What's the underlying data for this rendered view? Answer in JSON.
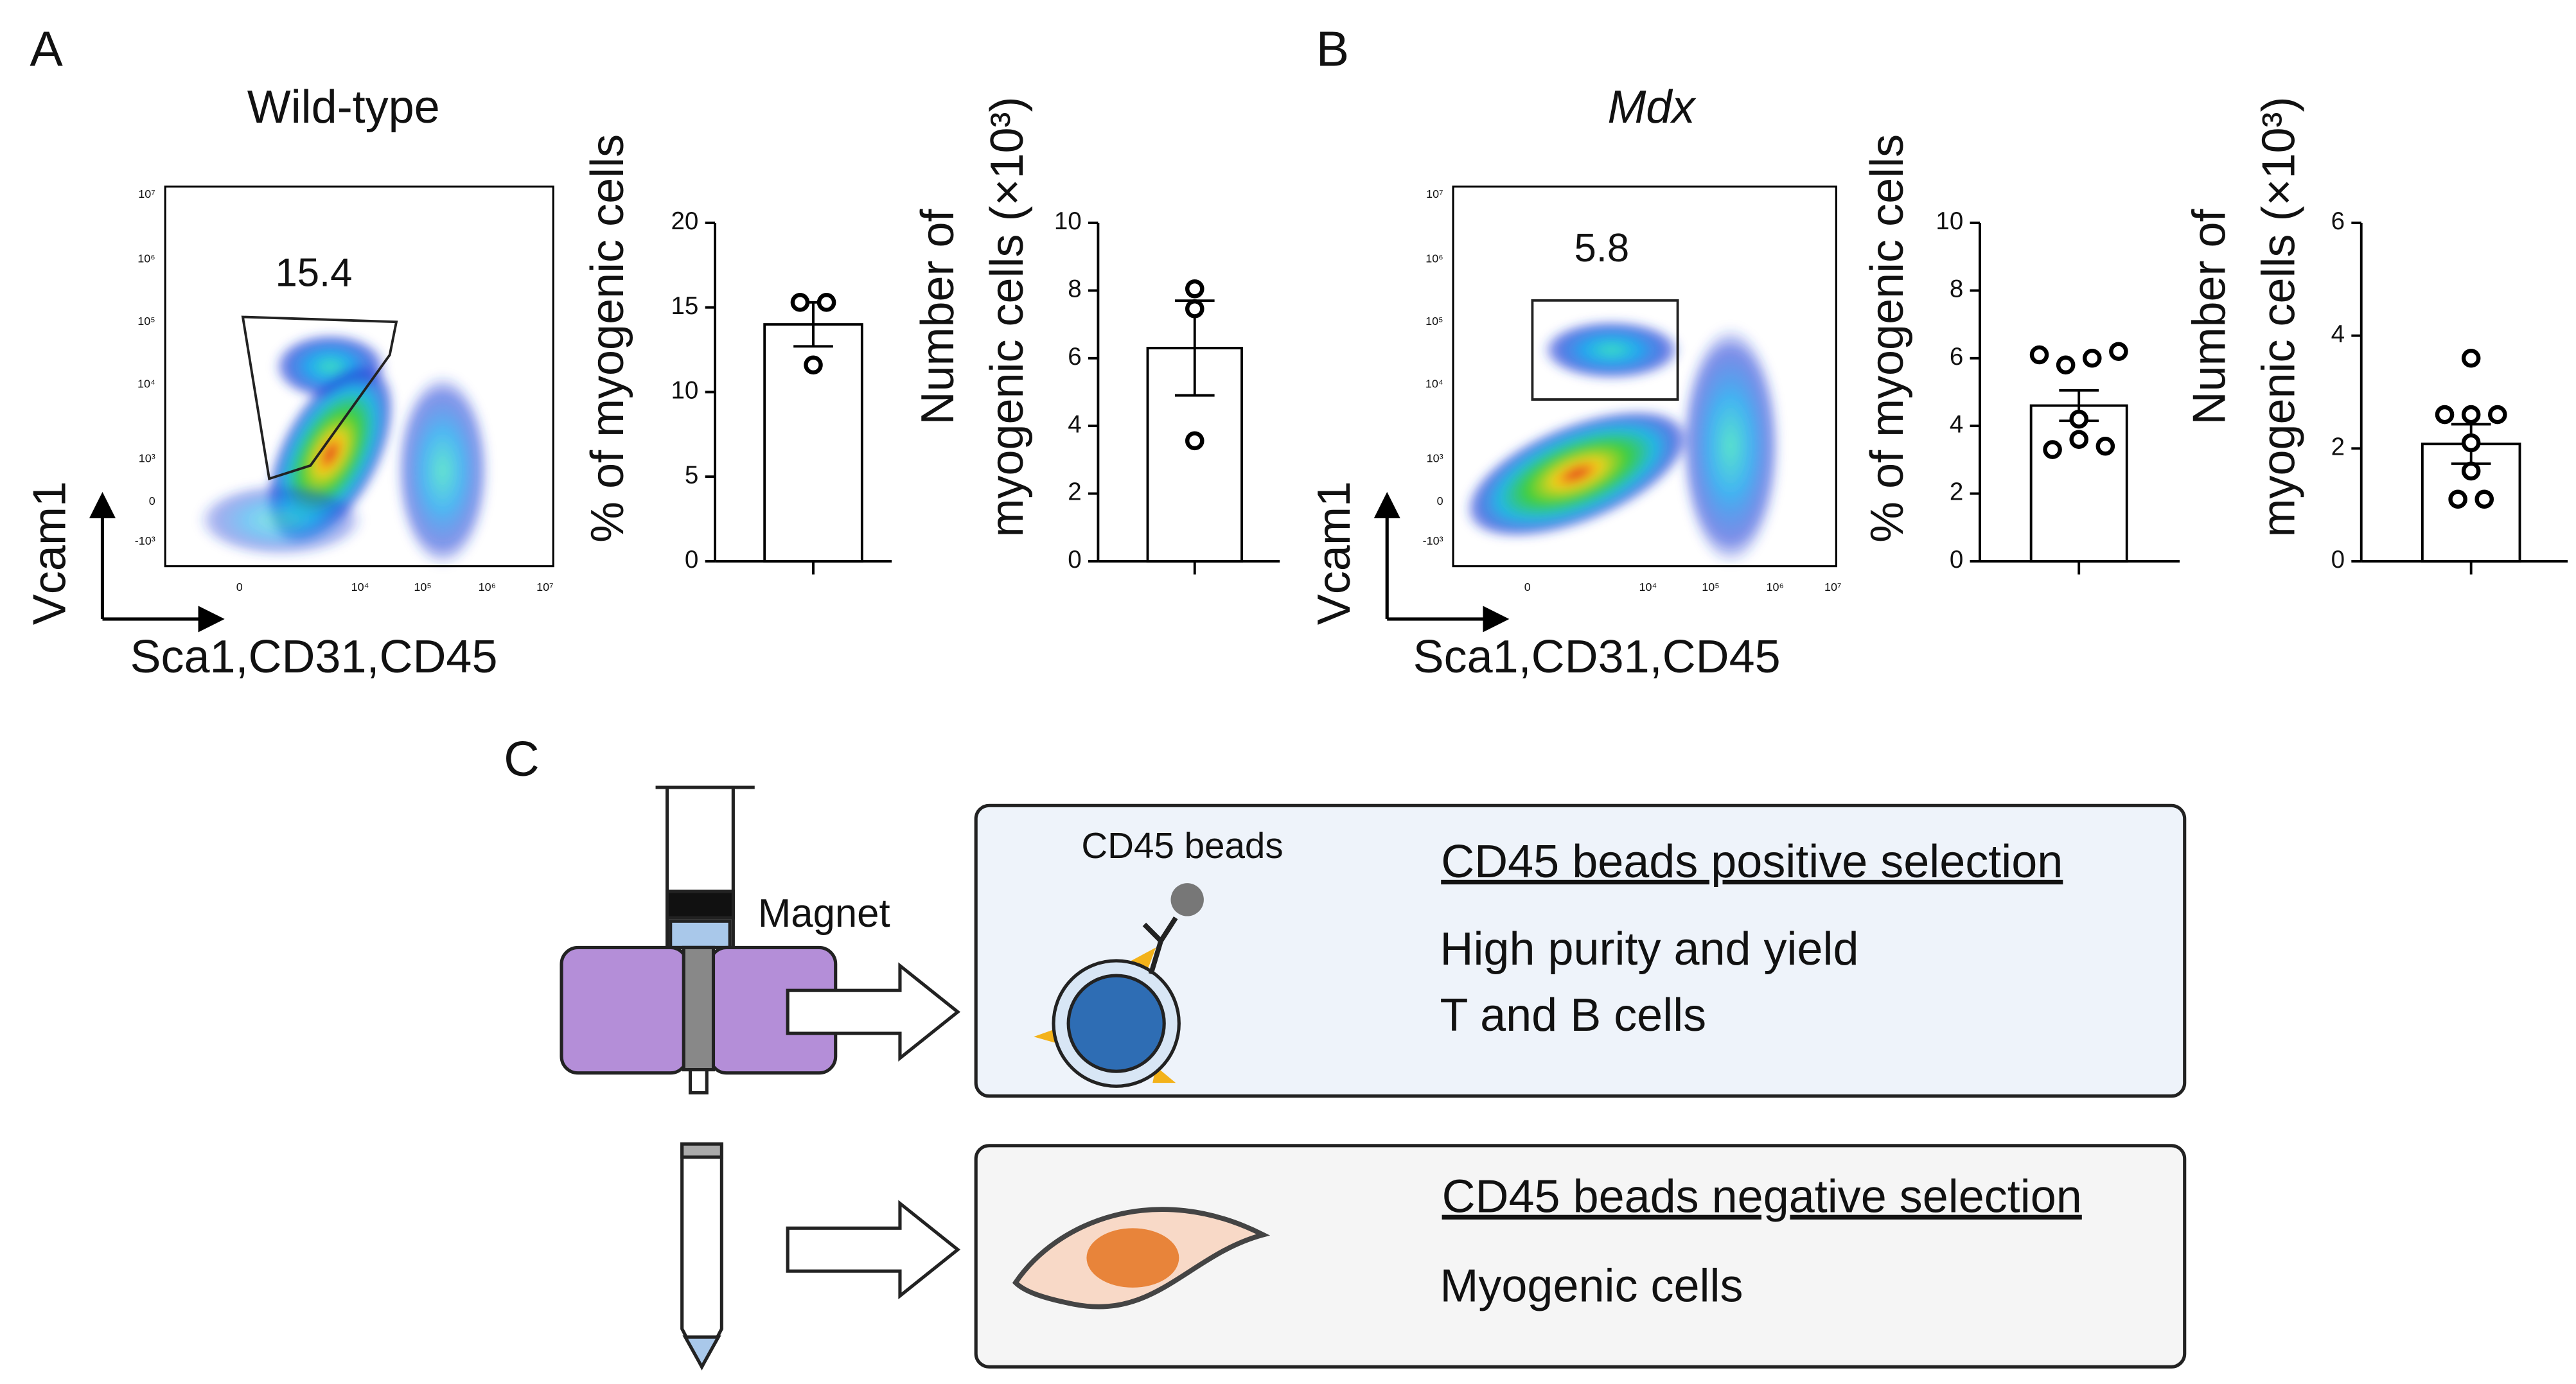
{
  "labels": {
    "A": "A",
    "B": "B",
    "C": "C"
  },
  "flow_plots": [
    {
      "title": "Wild-type",
      "gate_value": 15.4,
      "ylabel": "Vcam1",
      "xlabel": "Sca1,CD31,CD45",
      "yticks": [
        "10⁷",
        "10⁶",
        "10⁵",
        "10⁴",
        "10³",
        "0",
        "-10³"
      ],
      "xticks": [
        "0",
        "10⁴",
        "10⁵",
        "10⁶",
        "10⁷"
      ]
    },
    {
      "title": "Mdx",
      "gate_value": 5.8,
      "ylabel": "Vcam1",
      "xlabel": "Sca1,CD31,CD45",
      "yticks": [
        "10⁷",
        "10⁶",
        "10⁵",
        "10⁴",
        "10³",
        "0",
        "-10³"
      ],
      "xticks": [
        "0",
        "10⁴",
        "10⁵",
        "10⁶",
        "10⁷"
      ]
    }
  ],
  "chart_data": [
    {
      "type": "bar",
      "ylabel": [
        "% of myogenic cells"
      ],
      "ylim": [
        0,
        20
      ],
      "yticks": [
        0,
        5,
        10,
        15,
        20
      ],
      "mean": 14,
      "error": 1.3,
      "points": [
        15.3,
        15.3,
        11.6
      ],
      "color": "#ffffff"
    },
    {
      "type": "bar",
      "ylabel": [
        "Number of",
        "myogenic cells (×10³)"
      ],
      "ylim": [
        0,
        10
      ],
      "yticks": [
        0,
        2,
        4,
        6,
        8,
        10
      ],
      "mean": 6.3,
      "error": 1.4,
      "points": [
        8.05,
        7.46,
        3.56
      ],
      "color": "#ffffff"
    },
    {
      "type": "bar",
      "ylabel": [
        "% of myogenic cells"
      ],
      "ylim": [
        0,
        10
      ],
      "yticks": [
        0,
        2,
        4,
        6,
        8,
        10
      ],
      "mean": 4.6,
      "error": 0.45,
      "points": [
        6.1,
        5.8,
        6.0,
        6.2,
        4.2,
        3.3,
        3.6,
        3.4
      ],
      "color": "#ffffff"
    },
    {
      "type": "bar",
      "ylabel": [
        "Number of",
        "myogenic cells (×10³)"
      ],
      "ylim": [
        0,
        6
      ],
      "yticks": [
        0,
        2,
        4,
        6
      ],
      "mean": 2.08,
      "error": 0.35,
      "points": [
        3.6,
        2.6,
        2.6,
        2.6,
        2.1,
        1.6,
        1.1,
        1.1
      ],
      "color": "#ffffff"
    }
  ],
  "diagram": {
    "magnet_label": "Magnet",
    "positive": {
      "bead_label": "CD45 beads",
      "title": "CD45 beads positive selection",
      "lines": [
        "High purity and yield",
        "T and B cells"
      ]
    },
    "negative": {
      "title": "CD45 beads negative selection",
      "lines": [
        "Myogenic cells"
      ]
    }
  }
}
